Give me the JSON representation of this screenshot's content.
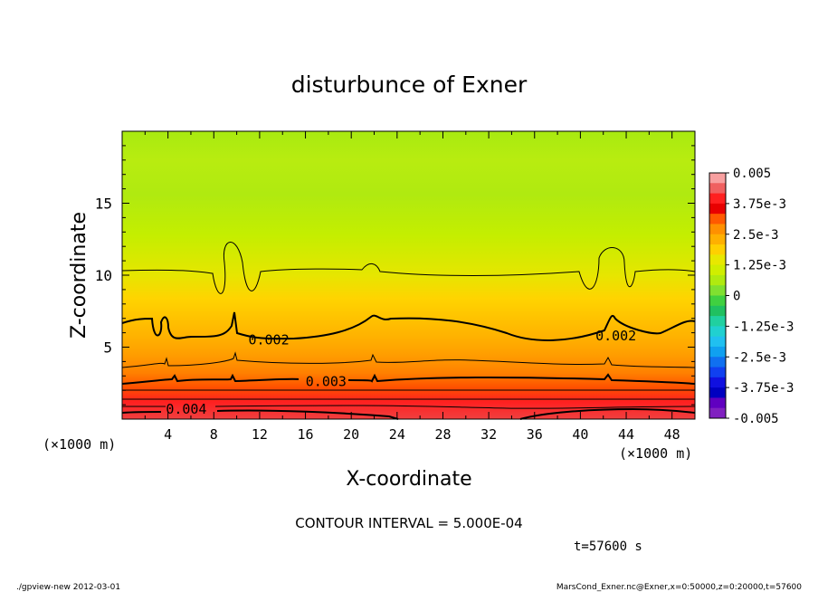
{
  "chart_data": {
    "type": "heatmap",
    "title": "disturbunce of Exner",
    "xlabel": "X-coordinate",
    "ylabel": "Z-coordinate",
    "x_unit_left": "(×1000 m)",
    "x_unit_right": "(×1000 m)",
    "xlim": [
      0,
      50
    ],
    "ylim": [
      0,
      20
    ],
    "x_ticks": [
      4,
      8,
      12,
      16,
      20,
      24,
      28,
      32,
      36,
      40,
      44,
      48
    ],
    "y_ticks": [
      5,
      10,
      15
    ],
    "colorbar": {
      "labels": [
        "0.005",
        "3.75e-3",
        "2.5e-3",
        "1.25e-3",
        "0",
        "-1.25e-3",
        "-2.5e-3",
        "-3.75e-3",
        "-0.005"
      ],
      "colors": [
        "#f8a0a0",
        "#f06060",
        "#ff2020",
        "#e80000",
        "#ff5a00",
        "#ff9000",
        "#ffb000",
        "#ffd000",
        "#e8e800",
        "#d0ee00",
        "#b0ea10",
        "#80e030",
        "#40d040",
        "#20c060",
        "#20d0a0",
        "#20d0d0",
        "#20c0f0",
        "#10a0f0",
        "#1070f0",
        "#1040f0",
        "#1010e0",
        "#0000c0",
        "#6000c0",
        "#8020c0"
      ]
    },
    "contour_labels": [
      {
        "text": "0.002",
        "x": 12.8,
        "z": 5.5
      },
      {
        "text": "0.002",
        "x": 43.1,
        "z": 5.8
      },
      {
        "text": "0.003",
        "x": 17.8,
        "z": 2.6
      },
      {
        "text": "0.004",
        "x": 5.6,
        "z": 0.7
      }
    ],
    "contour_interval_text": "CONTOUR INTERVAL = 5.000E-04",
    "time_text": "t=57600 s",
    "footer_left": "./gpview-new  2012-03-01",
    "footer_right": "MarsCond_Exner.nc@Exner,x=0:50000,z=0:20000,t=57600"
  }
}
